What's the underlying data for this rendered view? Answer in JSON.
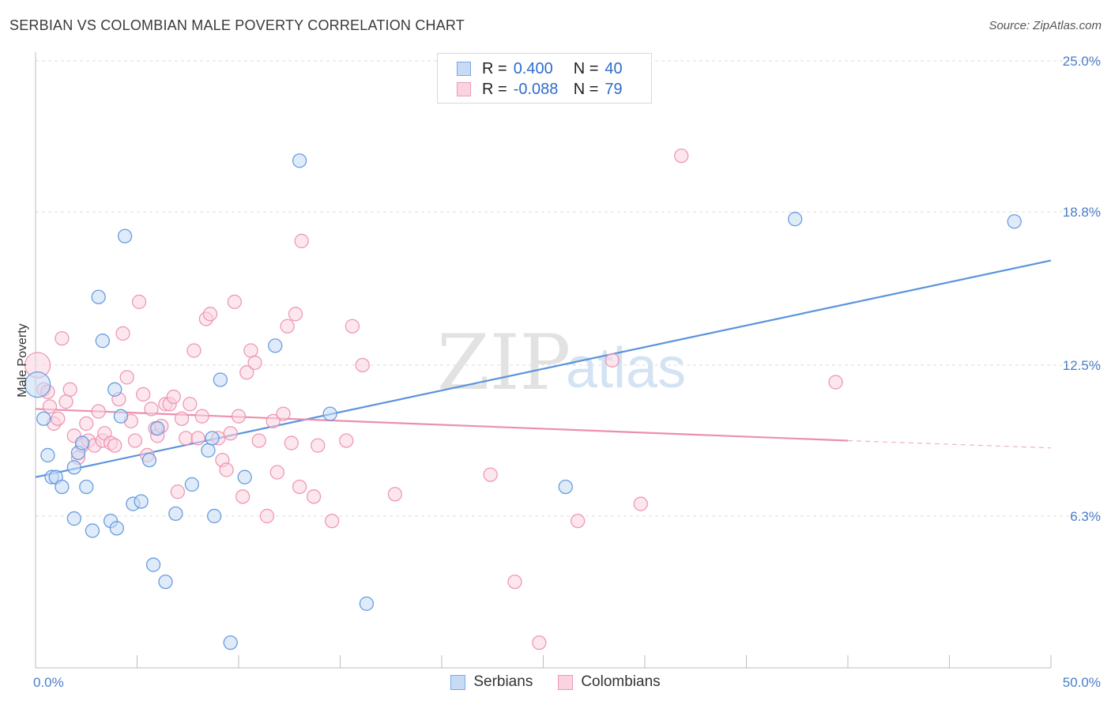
{
  "header": {
    "title": "SERBIAN VS COLOMBIAN MALE POVERTY CORRELATION CHART",
    "source": "Source: ZipAtlas.com"
  },
  "legend": {
    "rows": [
      {
        "r_label": "R =",
        "r_value": "0.400",
        "n_label": "N =",
        "n_value": "40",
        "color": "#7aa9e6",
        "fill": "#c7dbf6"
      },
      {
        "r_label": "R =",
        "r_value": "-0.088",
        "n_label": "N =",
        "n_value": "79",
        "color": "#ee9ab4",
        "fill": "#fbd3e0"
      }
    ]
  },
  "bottom_legend": [
    {
      "label": "Serbians",
      "color": "#7aa9e6",
      "fill": "#c7dbf6"
    },
    {
      "label": "Colombians",
      "color": "#ee9ab4",
      "fill": "#fbd3e0"
    }
  ],
  "watermark": {
    "zip": "ZIP",
    "atlas": "atlas"
  },
  "chart_data": {
    "type": "scatter",
    "title": "SERBIAN VS COLOMBIAN MALE POVERTY CORRELATION CHART",
    "xlabel": "",
    "ylabel": "Male Poverty",
    "xlim": [
      0,
      50
    ],
    "ylim": [
      0,
      26.5
    ],
    "x_tick_labels": [
      {
        "value": 0,
        "label": "0.0%"
      },
      {
        "value": 50,
        "label": "50.0%"
      }
    ],
    "x_minor_ticks": [
      0,
      5,
      10,
      15,
      20,
      25,
      30,
      35,
      40,
      45,
      50
    ],
    "y_ticks": [
      {
        "value": 6.3,
        "label": "6.3%"
      },
      {
        "value": 12.5,
        "label": "12.5%"
      },
      {
        "value": 18.8,
        "label": "18.8%"
      },
      {
        "value": 25.0,
        "label": "25.0%"
      }
    ],
    "grid": "horizontal dashed",
    "legend_position": "top-center",
    "series": [
      {
        "name": "Serbians",
        "color": "#5b93db",
        "fill": "#c7dbf6",
        "trend": {
          "x": [
            0,
            50
          ],
          "y": [
            7.9,
            16.8
          ],
          "style": "solid"
        },
        "points": [
          [
            0.1,
            11.7
          ],
          [
            0.4,
            10.3
          ],
          [
            0.6,
            8.8
          ],
          [
            0.8,
            7.9
          ],
          [
            1.0,
            7.9
          ],
          [
            1.3,
            7.5
          ],
          [
            1.9,
            8.3
          ],
          [
            1.9,
            6.2
          ],
          [
            2.1,
            8.9
          ],
          [
            2.3,
            9.3
          ],
          [
            2.5,
            7.5
          ],
          [
            2.8,
            5.7
          ],
          [
            3.1,
            15.3
          ],
          [
            3.3,
            13.5
          ],
          [
            3.7,
            6.1
          ],
          [
            3.9,
            11.5
          ],
          [
            4.0,
            5.8
          ],
          [
            4.2,
            10.4
          ],
          [
            4.4,
            17.8
          ],
          [
            4.8,
            6.8
          ],
          [
            5.2,
            6.9
          ],
          [
            5.6,
            8.6
          ],
          [
            5.8,
            4.3
          ],
          [
            6.0,
            9.9
          ],
          [
            6.4,
            3.6
          ],
          [
            6.9,
            6.4
          ],
          [
            7.7,
            7.6
          ],
          [
            8.5,
            9.0
          ],
          [
            8.7,
            9.5
          ],
          [
            8.8,
            6.3
          ],
          [
            9.1,
            11.9
          ],
          [
            9.6,
            1.1
          ],
          [
            10.3,
            7.9
          ],
          [
            11.8,
            13.3
          ],
          [
            13.0,
            20.9
          ],
          [
            14.5,
            10.5
          ],
          [
            16.3,
            2.7
          ],
          [
            26.1,
            7.5
          ],
          [
            37.4,
            18.5
          ],
          [
            48.2,
            18.4
          ]
        ]
      },
      {
        "name": "Colombians",
        "color": "#ec8fad",
        "fill": "#fbd3e0",
        "trend": {
          "x": [
            0,
            40
          ],
          "y": [
            10.7,
            9.4
          ],
          "style": "solid",
          "dashed_extension": {
            "x": [
              40,
              50
            ],
            "y": [
              9.4,
              9.1
            ]
          }
        },
        "points": [
          [
            0.1,
            12.5
          ],
          [
            0.4,
            11.5
          ],
          [
            0.6,
            11.4
          ],
          [
            0.7,
            10.8
          ],
          [
            0.9,
            10.1
          ],
          [
            1.1,
            10.3
          ],
          [
            1.3,
            13.6
          ],
          [
            1.5,
            11.0
          ],
          [
            1.7,
            11.5
          ],
          [
            1.9,
            9.6
          ],
          [
            2.1,
            8.7
          ],
          [
            2.3,
            9.2
          ],
          [
            2.5,
            10.1
          ],
          [
            2.6,
            9.4
          ],
          [
            2.9,
            9.2
          ],
          [
            3.1,
            10.6
          ],
          [
            3.3,
            9.4
          ],
          [
            3.4,
            9.7
          ],
          [
            3.7,
            9.3
          ],
          [
            3.9,
            9.2
          ],
          [
            4.1,
            11.1
          ],
          [
            4.3,
            13.8
          ],
          [
            4.5,
            12.0
          ],
          [
            4.7,
            10.2
          ],
          [
            4.9,
            9.4
          ],
          [
            5.1,
            15.1
          ],
          [
            5.3,
            11.3
          ],
          [
            5.5,
            8.8
          ],
          [
            5.7,
            10.7
          ],
          [
            5.9,
            9.9
          ],
          [
            6.0,
            9.6
          ],
          [
            6.2,
            10.0
          ],
          [
            6.4,
            10.9
          ],
          [
            6.6,
            10.9
          ],
          [
            6.8,
            11.2
          ],
          [
            7.0,
            7.3
          ],
          [
            7.2,
            10.3
          ],
          [
            7.4,
            9.5
          ],
          [
            7.6,
            10.9
          ],
          [
            7.8,
            13.1
          ],
          [
            8.0,
            9.5
          ],
          [
            8.2,
            10.4
          ],
          [
            8.4,
            14.4
          ],
          [
            8.6,
            14.6
          ],
          [
            9.0,
            9.5
          ],
          [
            9.2,
            8.6
          ],
          [
            9.4,
            8.2
          ],
          [
            9.6,
            9.7
          ],
          [
            9.8,
            15.1
          ],
          [
            10.0,
            10.4
          ],
          [
            10.2,
            7.1
          ],
          [
            10.4,
            12.2
          ],
          [
            10.6,
            13.1
          ],
          [
            10.8,
            12.6
          ],
          [
            11.0,
            9.4
          ],
          [
            11.4,
            6.3
          ],
          [
            11.7,
            10.2
          ],
          [
            11.9,
            8.1
          ],
          [
            12.2,
            10.5
          ],
          [
            12.4,
            14.1
          ],
          [
            12.6,
            9.3
          ],
          [
            12.8,
            14.6
          ],
          [
            13.0,
            7.5
          ],
          [
            13.1,
            17.6
          ],
          [
            13.7,
            7.1
          ],
          [
            13.9,
            9.2
          ],
          [
            14.6,
            6.1
          ],
          [
            15.3,
            9.4
          ],
          [
            15.6,
            14.1
          ],
          [
            16.1,
            12.5
          ],
          [
            17.7,
            7.2
          ],
          [
            22.4,
            8.0
          ],
          [
            23.6,
            3.6
          ],
          [
            24.8,
            1.1
          ],
          [
            26.7,
            6.1
          ],
          [
            28.4,
            12.7
          ],
          [
            29.8,
            6.8
          ],
          [
            31.8,
            21.1
          ],
          [
            39.4,
            11.8
          ]
        ]
      }
    ]
  }
}
